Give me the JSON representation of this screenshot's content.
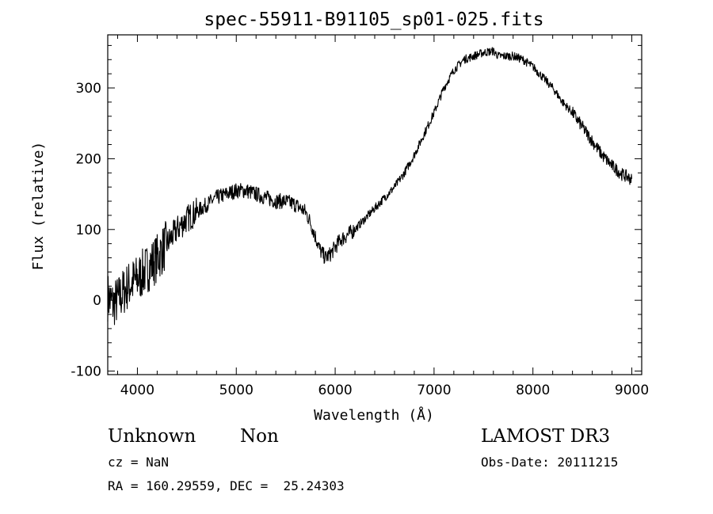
{
  "chart_data": {
    "type": "line",
    "title": "spec-55911-B91105_sp01-025.fits",
    "xlabel": "Wavelength (Å)",
    "ylabel": "Flux (relative)",
    "xlim": [
      3700,
      9100
    ],
    "ylim": [
      -105,
      375
    ],
    "xticks": [
      4000,
      5000,
      6000,
      7000,
      8000,
      9000
    ],
    "yticks": [
      -100,
      0,
      100,
      200,
      300
    ],
    "series": [
      {
        "name": "flux",
        "x": [
          3700,
          3750,
          3800,
          3850,
          3900,
          3950,
          4000,
          4100,
          4200,
          4300,
          4400,
          4500,
          4600,
          4700,
          4800,
          4900,
          5000,
          5100,
          5200,
          5300,
          5400,
          5500,
          5600,
          5700,
          5750,
          5800,
          5850,
          5900,
          5950,
          6000,
          6050,
          6100,
          6200,
          6300,
          6400,
          6500,
          6600,
          6700,
          6800,
          6900,
          7000,
          7100,
          7200,
          7300,
          7400,
          7500,
          7600,
          7650,
          7700,
          7800,
          7900,
          8000,
          8100,
          8200,
          8300,
          8400,
          8500,
          8600,
          8700,
          8800,
          8900,
          8950,
          9000
        ],
        "y": [
          5,
          -5,
          0,
          10,
          20,
          25,
          30,
          45,
          60,
          80,
          100,
          115,
          125,
          135,
          145,
          150,
          155,
          155,
          150,
          145,
          140,
          140,
          135,
          125,
          110,
          90,
          70,
          60,
          65,
          75,
          85,
          90,
          100,
          115,
          130,
          145,
          160,
          180,
          205,
          235,
          265,
          300,
          325,
          340,
          345,
          350,
          352,
          345,
          345,
          345,
          340,
          330,
          315,
          300,
          280,
          265,
          245,
          225,
          205,
          190,
          178,
          175,
          170
        ]
      }
    ]
  },
  "annotations": {
    "object_class": "Unknown",
    "subclass": "Non",
    "survey": "LAMOST DR3",
    "cz": "cz = NaN",
    "obs_date": "Obs-Date: 20111215",
    "coords": "RA = 160.29559, DEC =  25.24303"
  },
  "colors": {
    "line": "#000000",
    "axes": "#000000",
    "background": "#ffffff"
  }
}
